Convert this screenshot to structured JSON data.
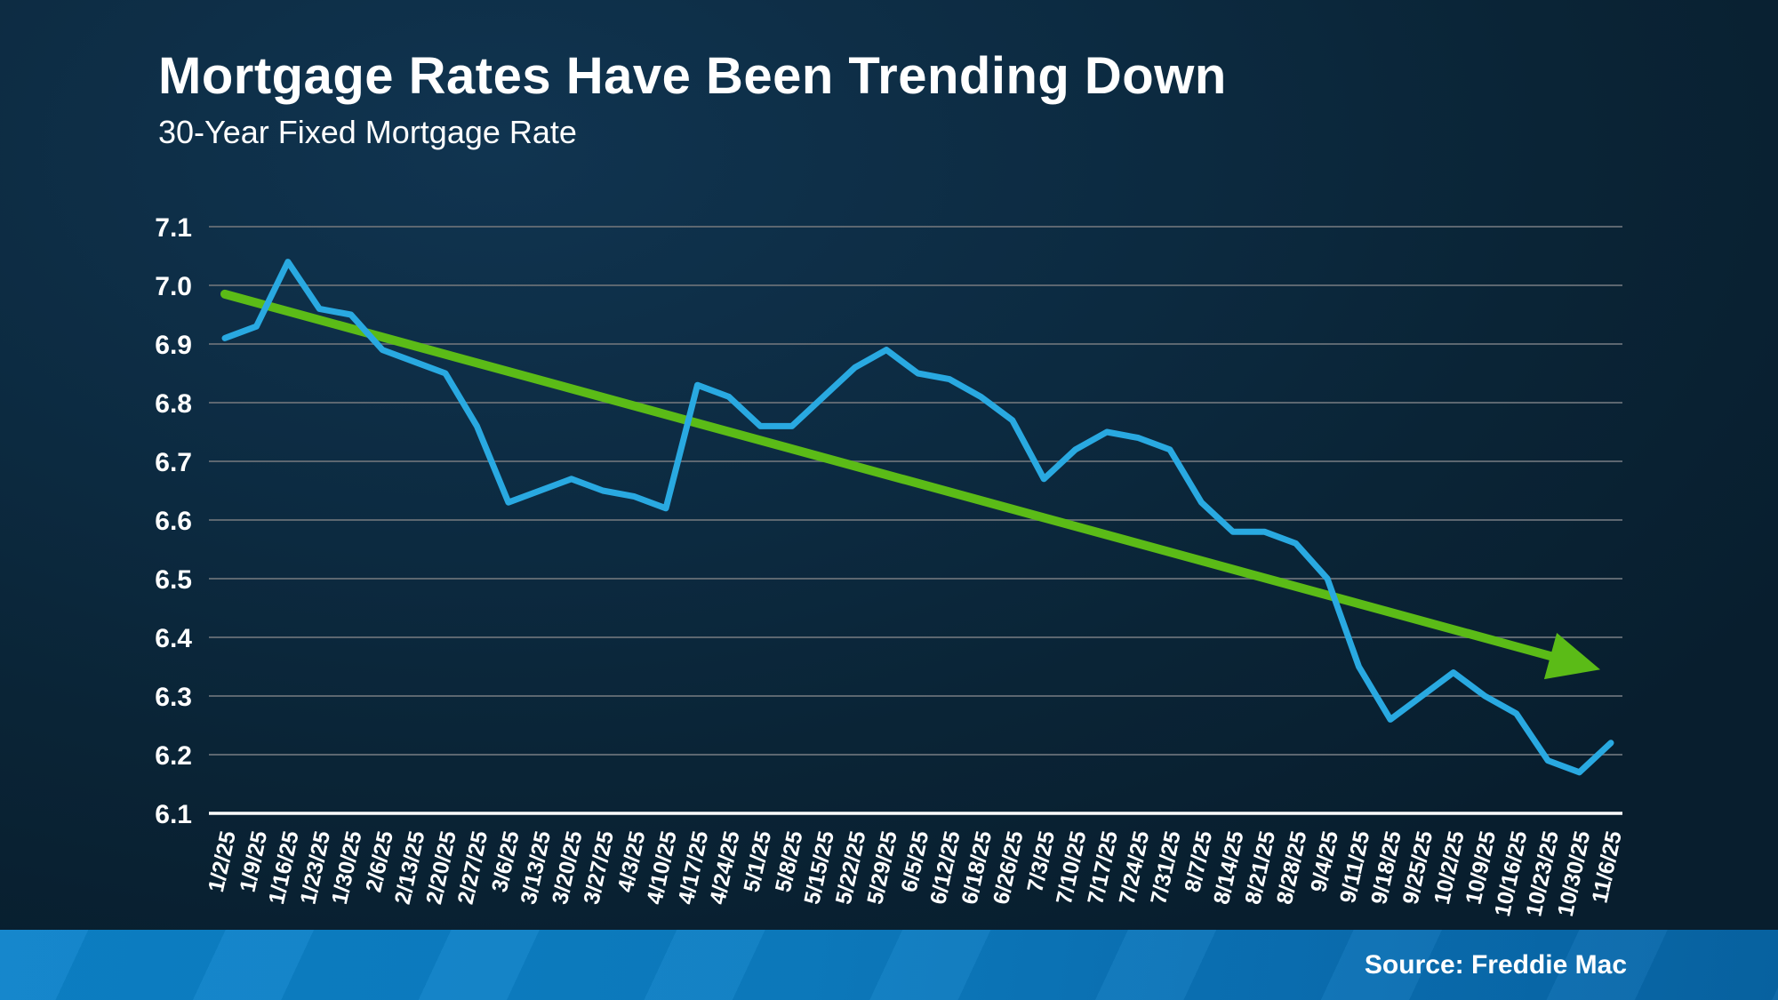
{
  "header": {
    "title": "Mortgage Rates Have Been Trending Down",
    "subtitle": "30-Year Fixed Mortgage Rate"
  },
  "footer": {
    "source_label": "Source: Freddie Mac"
  },
  "colors": {
    "background_dark": "#081e2e",
    "background_light": "#103450",
    "rate_line": "#29a9e1",
    "trend_arrow": "#5bbb17",
    "gridline": "#5d6770",
    "axis_line": "#ffffff",
    "label_text": "#ffffff",
    "footer_bar": "#0c7dc2"
  },
  "chart_data": {
    "type": "line",
    "title": "Mortgage Rates Have Been Trending Down",
    "subtitle": "30-Year Fixed Mortgage Rate",
    "source": "Source: Freddie Mac",
    "grid": "horizontal",
    "legend_position": "none",
    "ylim": [
      6.1,
      7.1
    ],
    "y_ticks": [
      7.1,
      7.0,
      6.9,
      6.8,
      6.7,
      6.6,
      6.5,
      6.4,
      6.3,
      6.2,
      6.1
    ],
    "y_tick_labels": [
      "7.1",
      "7.0",
      "6.9",
      "6.8",
      "6.7",
      "6.6",
      "6.5",
      "6.4",
      "6.3",
      "6.2",
      "6.1"
    ],
    "x": [
      "1/2/25",
      "1/9/25",
      "1/16/25",
      "1/23/25",
      "1/30/25",
      "2/6/25",
      "2/13/25",
      "2/20/25",
      "2/27/25",
      "3/6/25",
      "3/13/25",
      "3/20/25",
      "3/27/25",
      "4/3/25",
      "4/10/25",
      "4/17/25",
      "4/24/25",
      "5/1/25",
      "5/8/25",
      "5/15/25",
      "5/22/25",
      "5/29/25",
      "6/5/25",
      "6/12/25",
      "6/18/25",
      "6/26/25",
      "7/3/25",
      "7/10/25",
      "7/17/25",
      "7/24/25",
      "7/31/25",
      "8/7/25",
      "8/14/25",
      "8/21/25",
      "8/28/25",
      "9/4/25",
      "9/11/25",
      "9/18/25",
      "9/25/25",
      "10/2/25",
      "10/9/25",
      "10/16/25",
      "10/23/25",
      "10/30/25",
      "11/6/25"
    ],
    "series": [
      {
        "name": "30-Year Fixed Mortgage Rate",
        "color": "#29a9e1",
        "values": [
          6.91,
          6.93,
          7.04,
          6.96,
          6.95,
          6.89,
          6.87,
          6.85,
          6.76,
          6.63,
          6.65,
          6.67,
          6.65,
          6.64,
          6.62,
          6.83,
          6.81,
          6.76,
          6.76,
          6.81,
          6.86,
          6.89,
          6.85,
          6.84,
          6.81,
          6.77,
          6.67,
          6.72,
          6.75,
          6.74,
          6.72,
          6.63,
          6.58,
          6.58,
          6.56,
          6.5,
          6.35,
          6.26,
          6.3,
          6.34,
          6.3,
          6.27,
          6.19,
          6.17,
          6.22
        ]
      }
    ],
    "trend": {
      "name": "downward-trend-arrow",
      "color": "#5bbb17",
      "start_value": 6.985,
      "end_value": 6.345
    }
  }
}
